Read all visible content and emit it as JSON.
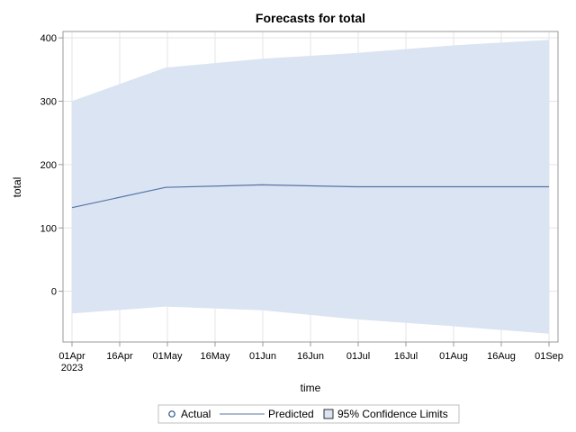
{
  "chart_data": {
    "type": "line",
    "title": "Forecasts for total",
    "xlabel": "time",
    "ylabel": "total",
    "x_ticks": [
      "01Apr",
      "16Apr",
      "01May",
      "16May",
      "01Jun",
      "16Jun",
      "01Jul",
      "16Jul",
      "01Aug",
      "16Aug",
      "01Sep"
    ],
    "x_tick_sublabel": "2023",
    "x_range": [
      "2023-04-01",
      "2023-09-01"
    ],
    "y_ticks": [
      0,
      100,
      200,
      300,
      400
    ],
    "ylim": [
      -80,
      410
    ],
    "grid": true,
    "legend_position": "bottom",
    "legend": {
      "actual_label": "Actual",
      "predicted_label": "Predicted",
      "ci_label": "95% Confidence Limits"
    },
    "x": [
      "2023-04-01",
      "2023-05-01",
      "2023-06-01",
      "2023-07-01",
      "2023-08-01",
      "2023-09-01"
    ],
    "series": [
      {
        "name": "Predicted",
        "values": [
          132,
          164,
          168,
          165,
          165,
          165
        ]
      },
      {
        "name": "Upper 95% Confidence Limit",
        "values": [
          300,
          353,
          367,
          376,
          388,
          397
        ]
      },
      {
        "name": "Lower 95% Confidence Limit",
        "values": [
          -35,
          -24,
          -30,
          -44,
          -55,
          -67
        ]
      }
    ],
    "colors": {
      "predicted_line": "#5774a6",
      "ci_fill": "#dbe4f2",
      "actual_marker": "#2b4f86",
      "grid": "#e6e6e6",
      "axis": "#999999"
    }
  }
}
